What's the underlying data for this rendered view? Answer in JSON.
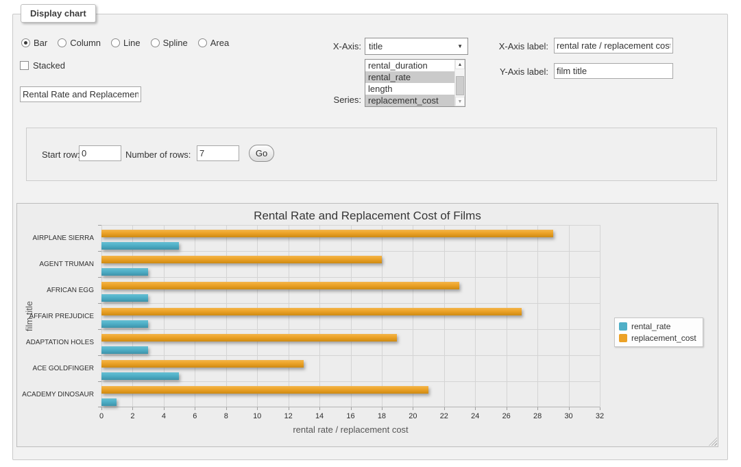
{
  "window": {
    "title": "Display chart"
  },
  "controls": {
    "chart_types": [
      {
        "label": "Bar",
        "selected": true
      },
      {
        "label": "Column",
        "selected": false
      },
      {
        "label": "Line",
        "selected": false
      },
      {
        "label": "Spline",
        "selected": false
      },
      {
        "label": "Area",
        "selected": false
      }
    ],
    "stacked": {
      "label": "Stacked",
      "checked": false
    },
    "chart_title_input": {
      "value": "Rental Rate and Replacement Cost of Films"
    },
    "x_axis": {
      "label": "X-Axis:",
      "value": "title"
    },
    "series": {
      "label": "Series:",
      "options": [
        {
          "label": "rental_duration",
          "selected": false
        },
        {
          "label": "rental_rate",
          "selected": true
        },
        {
          "label": "length",
          "selected": false
        },
        {
          "label": "replacement_cost",
          "selected": true
        }
      ]
    },
    "x_axis_label": {
      "label": "X-Axis label:",
      "value": "rental rate / replacement cost"
    },
    "y_axis_label": {
      "label": "Y-Axis label:",
      "value": "film title"
    }
  },
  "row_controls": {
    "start_row": {
      "label": "Start row:",
      "value": "0"
    },
    "num_rows": {
      "label": "Number of rows:",
      "value": "7"
    },
    "go_label": "Go"
  },
  "chart_data": {
    "type": "bar",
    "title": "Rental Rate and Replacement Cost of Films",
    "categories": [
      "AIRPLANE SIERRA",
      "AGENT TRUMAN",
      "AFRICAN EGG",
      "AFFAIR PREJUDICE",
      "ADAPTATION HOLES",
      "ACE GOLDFINGER",
      "ACADEMY DINOSAUR"
    ],
    "series": [
      {
        "name": "rental_rate",
        "color": "#4FAFC7",
        "color_light": "#66BFD3",
        "color_dark": "#3D93AA",
        "values": [
          4.99,
          2.99,
          2.99,
          2.99,
          2.99,
          4.99,
          0.99
        ]
      },
      {
        "name": "replacement_cost",
        "color": "#ECA227",
        "color_light": "#F3B54A",
        "color_dark": "#CE8A12",
        "values": [
          28.99,
          17.99,
          22.99,
          26.99,
          18.99,
          12.99,
          20.99
        ]
      }
    ],
    "xlabel": "rental rate / replacement cost",
    "ylabel": "film title",
    "xlim": [
      0,
      32
    ],
    "x_ticks": [
      0,
      2,
      4,
      6,
      8,
      10,
      12,
      14,
      16,
      18,
      20,
      22,
      24,
      26,
      28,
      30,
      32
    ],
    "grid": true,
    "legend_position": "right"
  }
}
